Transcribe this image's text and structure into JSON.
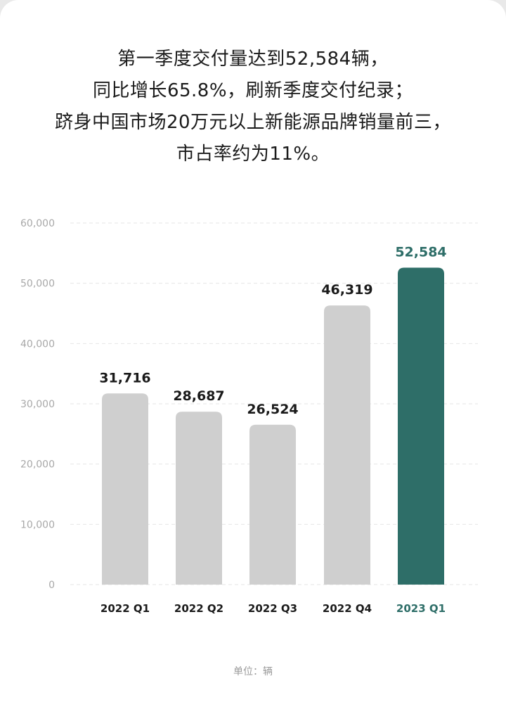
{
  "headline": {
    "lines": [
      "第一季度交付量达到52,584辆，",
      "同比增长65.8%，刷新季度交付纪录；",
      "跻身中国市场20万元以上新能源品牌销量前三，",
      "市占率约为11%。"
    ]
  },
  "chart_data": {
    "type": "bar",
    "categories": [
      "2022 Q1",
      "2022 Q2",
      "2022 Q3",
      "2022 Q4",
      "2023 Q1"
    ],
    "values": [
      31716,
      28687,
      26524,
      46319,
      52584
    ],
    "value_labels": [
      "31,716",
      "28,687",
      "26,524",
      "46,319",
      "52,584"
    ],
    "yticks": [
      0,
      10000,
      20000,
      30000,
      40000,
      50000,
      60000
    ],
    "ytick_labels": [
      "0",
      "10,000",
      "20,000",
      "30,000",
      "40,000",
      "50,000",
      "60,000"
    ],
    "ylim": [
      0,
      60000
    ],
    "grid": true,
    "highlight_index": 4,
    "colors": {
      "bar": "#cfcfcf",
      "highlight": "#2e6e68",
      "value_label": "#1a1a1a",
      "category_label": "#1a1a1a",
      "tick_label": "#a8a8a8",
      "grid": "#e6e6e6"
    }
  },
  "footnote": "单位：辆"
}
